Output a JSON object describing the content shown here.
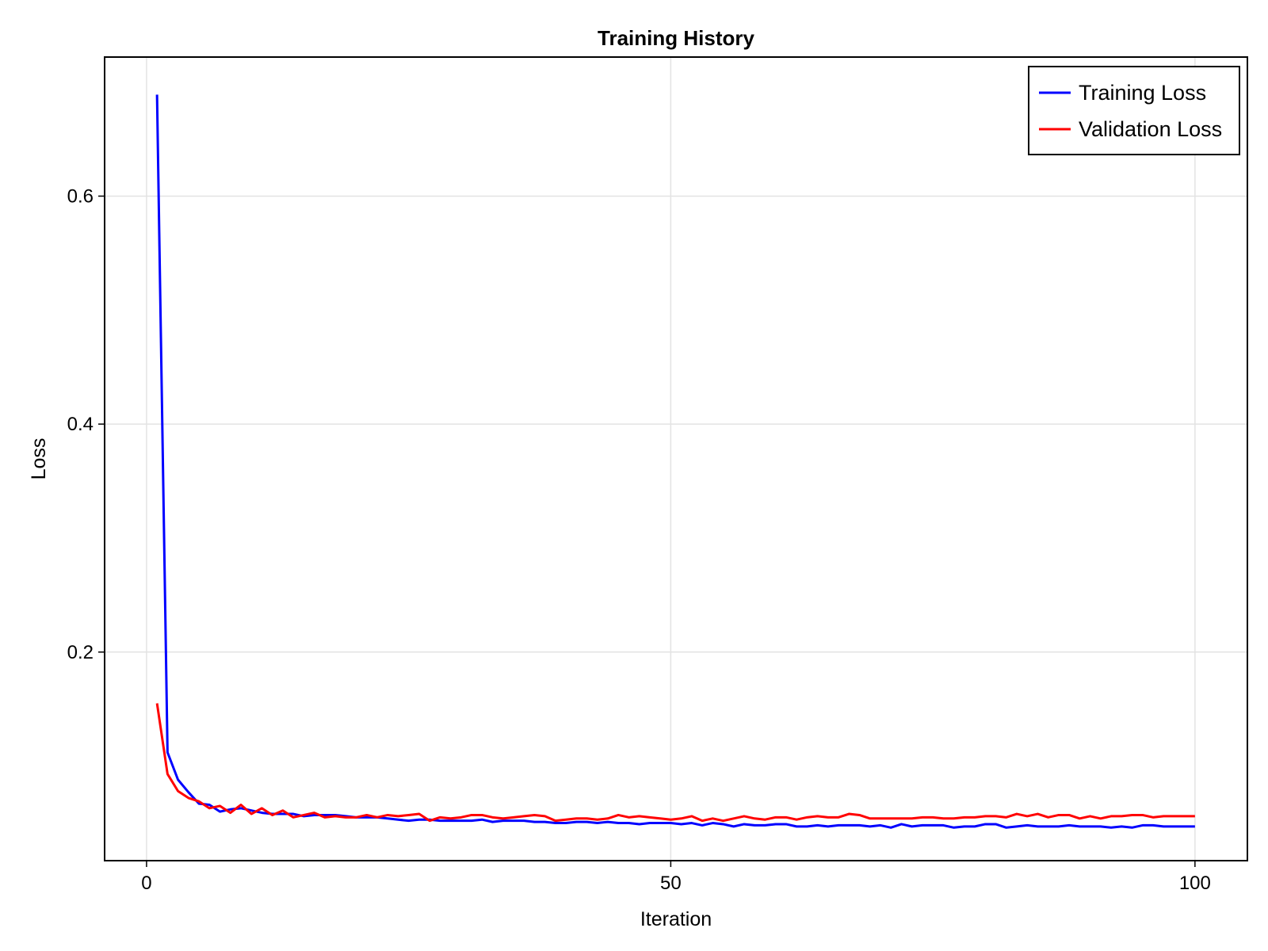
{
  "chart_data": {
    "type": "line",
    "title": "Training History",
    "xlabel": "Iteration",
    "ylabel": "Loss",
    "xlim": [
      -4,
      105
    ],
    "ylim": [
      0.017,
      0.722
    ],
    "xticks": [
      0,
      50,
      100
    ],
    "xtick_labels": [
      "0",
      "50",
      "100"
    ],
    "yticks": [
      0.2,
      0.4,
      0.6
    ],
    "ytick_labels": [
      "0.2",
      "0.4",
      "0.6"
    ],
    "grid": true,
    "legend_position": "top-right",
    "series": [
      {
        "name": "Training Loss",
        "color": "#0000ff",
        "x": [
          1,
          2,
          3,
          4,
          5,
          6,
          7,
          8,
          9,
          10,
          11,
          12,
          13,
          14,
          15,
          16,
          17,
          18,
          19,
          20,
          21,
          22,
          23,
          24,
          25,
          26,
          27,
          28,
          29,
          30,
          31,
          32,
          33,
          34,
          35,
          36,
          37,
          38,
          39,
          40,
          41,
          42,
          43,
          44,
          45,
          46,
          47,
          48,
          49,
          50,
          51,
          52,
          53,
          54,
          55,
          56,
          57,
          58,
          59,
          60,
          61,
          62,
          63,
          64,
          65,
          66,
          67,
          68,
          69,
          70,
          71,
          72,
          73,
          74,
          75,
          76,
          77,
          78,
          79,
          80,
          81,
          82,
          83,
          84,
          85,
          86,
          87,
          88,
          89,
          90,
          91,
          92,
          93,
          94,
          95,
          96,
          97,
          98,
          99,
          100
        ],
        "values": [
          0.689,
          0.112,
          0.088,
          0.077,
          0.067,
          0.066,
          0.06,
          0.062,
          0.063,
          0.061,
          0.059,
          0.058,
          0.058,
          0.058,
          0.056,
          0.057,
          0.057,
          0.057,
          0.056,
          0.055,
          0.055,
          0.055,
          0.054,
          0.053,
          0.052,
          0.053,
          0.053,
          0.052,
          0.052,
          0.052,
          0.052,
          0.053,
          0.051,
          0.052,
          0.052,
          0.052,
          0.051,
          0.051,
          0.05,
          0.05,
          0.051,
          0.051,
          0.05,
          0.051,
          0.05,
          0.05,
          0.049,
          0.05,
          0.05,
          0.05,
          0.049,
          0.05,
          0.048,
          0.05,
          0.049,
          0.047,
          0.049,
          0.048,
          0.048,
          0.049,
          0.049,
          0.047,
          0.047,
          0.048,
          0.047,
          0.048,
          0.048,
          0.048,
          0.047,
          0.048,
          0.046,
          0.049,
          0.047,
          0.048,
          0.048,
          0.048,
          0.046,
          0.047,
          0.047,
          0.049,
          0.049,
          0.046,
          0.047,
          0.048,
          0.047,
          0.047,
          0.047,
          0.048,
          0.047,
          0.047,
          0.047,
          0.046,
          0.047,
          0.046,
          0.048,
          0.048,
          0.047,
          0.047,
          0.047,
          0.047
        ]
      },
      {
        "name": "Validation Loss",
        "color": "#ff0000",
        "x": [
          1,
          2,
          3,
          4,
          5,
          6,
          7,
          8,
          9,
          10,
          11,
          12,
          13,
          14,
          15,
          16,
          17,
          18,
          19,
          20,
          21,
          22,
          23,
          24,
          25,
          26,
          27,
          28,
          29,
          30,
          31,
          32,
          33,
          34,
          35,
          36,
          37,
          38,
          39,
          40,
          41,
          42,
          43,
          44,
          45,
          46,
          47,
          48,
          49,
          50,
          51,
          52,
          53,
          54,
          55,
          56,
          57,
          58,
          59,
          60,
          61,
          62,
          63,
          64,
          65,
          66,
          67,
          68,
          69,
          70,
          71,
          72,
          73,
          74,
          75,
          76,
          77,
          78,
          79,
          80,
          81,
          82,
          83,
          84,
          85,
          86,
          87,
          88,
          89,
          90,
          91,
          92,
          93,
          94,
          95,
          96,
          97,
          98,
          99,
          100
        ],
        "values": [
          0.155,
          0.093,
          0.078,
          0.072,
          0.069,
          0.063,
          0.065,
          0.059,
          0.066,
          0.058,
          0.063,
          0.057,
          0.061,
          0.055,
          0.057,
          0.059,
          0.055,
          0.056,
          0.055,
          0.055,
          0.057,
          0.055,
          0.057,
          0.056,
          0.057,
          0.058,
          0.052,
          0.055,
          0.054,
          0.055,
          0.057,
          0.057,
          0.055,
          0.054,
          0.055,
          0.056,
          0.057,
          0.056,
          0.052,
          0.053,
          0.054,
          0.054,
          0.053,
          0.054,
          0.057,
          0.055,
          0.056,
          0.055,
          0.054,
          0.053,
          0.054,
          0.056,
          0.052,
          0.054,
          0.052,
          0.054,
          0.056,
          0.054,
          0.053,
          0.055,
          0.055,
          0.053,
          0.055,
          0.056,
          0.055,
          0.055,
          0.058,
          0.057,
          0.054,
          0.054,
          0.054,
          0.054,
          0.054,
          0.055,
          0.055,
          0.054,
          0.054,
          0.055,
          0.055,
          0.056,
          0.056,
          0.055,
          0.058,
          0.056,
          0.058,
          0.055,
          0.057,
          0.057,
          0.054,
          0.056,
          0.054,
          0.056,
          0.056,
          0.057,
          0.057,
          0.055,
          0.056,
          0.056,
          0.056,
          0.056
        ]
      }
    ]
  }
}
